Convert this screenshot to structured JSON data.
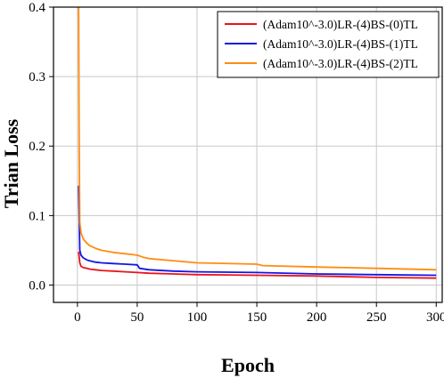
{
  "chart_data": {
    "type": "line",
    "xlabel": "Epoch",
    "ylabel": "Trian Loss",
    "xlim": [
      -20,
      305
    ],
    "ylim": [
      -0.025,
      0.4
    ],
    "x_ticks": [
      0,
      50,
      100,
      150,
      200,
      250,
      300
    ],
    "y_ticks": [
      0.0,
      0.1,
      0.2,
      0.3,
      0.4
    ],
    "x_tick_labels": [
      "0",
      "50",
      "100",
      "150",
      "200",
      "250",
      "300"
    ],
    "y_tick_labels": [
      "0.0",
      "0.1",
      "0.2",
      "0.3",
      "0.4"
    ],
    "grid": true,
    "legend_position": "top-right",
    "series": [
      {
        "name": "(Adam10^-3.0)LR-(4)BS-(0)TL",
        "color": "#e8141c",
        "x": [
          1,
          2,
          3,
          5,
          8,
          10,
          15,
          20,
          30,
          40,
          50,
          60,
          80,
          100,
          150,
          200,
          250,
          300
        ],
        "y": [
          0.048,
          0.032,
          0.027,
          0.025,
          0.024,
          0.023,
          0.022,
          0.021,
          0.02,
          0.019,
          0.018,
          0.017,
          0.016,
          0.015,
          0.014,
          0.013,
          0.011,
          0.01
        ]
      },
      {
        "name": "(Adam10^-3.0)LR-(4)BS-(1)TL",
        "color": "#1414e6",
        "x": [
          1,
          2,
          3,
          5,
          8,
          10,
          15,
          20,
          30,
          40,
          50,
          52,
          60,
          80,
          100,
          150,
          200,
          250,
          300
        ],
        "y": [
          0.143,
          0.05,
          0.043,
          0.039,
          0.036,
          0.035,
          0.033,
          0.032,
          0.031,
          0.03,
          0.029,
          0.024,
          0.022,
          0.02,
          0.019,
          0.018,
          0.016,
          0.015,
          0.014
        ]
      },
      {
        "name": "(Adam10^-3.0)LR-(4)BS-(2)TL",
        "color": "#ff8c14",
        "x": [
          1,
          1.5,
          2,
          3,
          5,
          8,
          10,
          15,
          20,
          30,
          40,
          50,
          55,
          60,
          80,
          100,
          150,
          155,
          200,
          250,
          300
        ],
        "y": [
          0.4,
          0.2,
          0.09,
          0.075,
          0.066,
          0.06,
          0.057,
          0.053,
          0.05,
          0.047,
          0.045,
          0.043,
          0.04,
          0.038,
          0.035,
          0.032,
          0.03,
          0.028,
          0.026,
          0.024,
          0.022
        ]
      }
    ]
  }
}
